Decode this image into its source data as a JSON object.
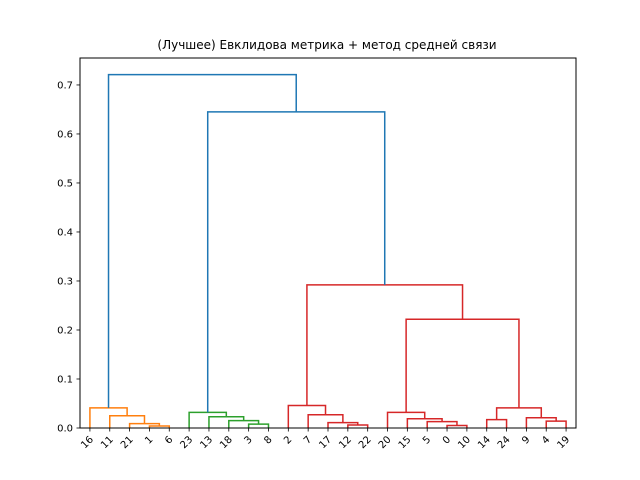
{
  "chart_data": {
    "type": "dendrogram",
    "title": "(Лучшее) Евклидова метрика + метод средней связи",
    "xlabel": "",
    "ylabel": "",
    "ylim": [
      0,
      0.755
    ],
    "yticks": [
      0.0,
      0.1,
      0.2,
      0.3,
      0.4,
      0.5,
      0.6,
      0.7
    ],
    "ytick_labels": [
      "0.0",
      "0.1",
      "0.2",
      "0.3",
      "0.4",
      "0.5",
      "0.6",
      "0.7"
    ],
    "leaves": [
      "16",
      "11",
      "21",
      "1",
      "6",
      "23",
      "13",
      "18",
      "3",
      "8",
      "2",
      "7",
      "17",
      "12",
      "22",
      "20",
      "15",
      "5",
      "0",
      "10",
      "14",
      "24",
      "9",
      "4",
      "19"
    ],
    "cluster_colors": {
      "C1": "#ff7f0e",
      "C2": "#2ca02c",
      "C3": "#d62728",
      "above": "#1f77b4"
    },
    "merges": [
      {
        "left": "1",
        "right": "6",
        "height": 0.004,
        "color": "C1"
      },
      {
        "left": "21",
        "right": "m0",
        "height": 0.009,
        "color": "C1"
      },
      {
        "left": "11",
        "right": "m1",
        "height": 0.025,
        "color": "C1"
      },
      {
        "left": "16",
        "right": "m2",
        "height": 0.041,
        "color": "C1"
      },
      {
        "left": "3",
        "right": "8",
        "height": 0.008,
        "color": "C2"
      },
      {
        "left": "18",
        "right": "m4",
        "height": 0.015,
        "color": "C2"
      },
      {
        "left": "13",
        "right": "m5",
        "height": 0.023,
        "color": "C2"
      },
      {
        "left": "23",
        "right": "m6",
        "height": 0.032,
        "color": "C2"
      },
      {
        "left": "12",
        "right": "22",
        "height": 0.006,
        "color": "C3"
      },
      {
        "left": "17",
        "right": "m8",
        "height": 0.011,
        "color": "C3"
      },
      {
        "left": "7",
        "right": "m9",
        "height": 0.027,
        "color": "C3"
      },
      {
        "left": "2",
        "right": "m10",
        "height": 0.046,
        "color": "C3"
      },
      {
        "left": "0",
        "right": "10",
        "height": 0.005,
        "color": "C3"
      },
      {
        "left": "5",
        "right": "m12",
        "height": 0.013,
        "color": "C3"
      },
      {
        "left": "15",
        "right": "m13",
        "height": 0.019,
        "color": "C3"
      },
      {
        "left": "20",
        "right": "m14",
        "height": 0.032,
        "color": "C3"
      },
      {
        "left": "4",
        "right": "19",
        "height": 0.014,
        "color": "C3"
      },
      {
        "left": "9",
        "right": "m16",
        "height": 0.021,
        "color": "C3"
      },
      {
        "left": "14",
        "right": "24",
        "height": 0.017,
        "color": "C3"
      },
      {
        "left": "m18",
        "right": "m17",
        "height": 0.041,
        "color": "C3"
      },
      {
        "left": "m15",
        "right": "m19",
        "height": 0.222,
        "color": "C3"
      },
      {
        "left": "m11",
        "right": "m20",
        "height": 0.292,
        "color": "C3"
      },
      {
        "left": "m7",
        "right": "m21",
        "height": 0.645,
        "color": "above"
      },
      {
        "left": "m3",
        "right": "m22",
        "height": 0.721,
        "color": "above"
      }
    ]
  }
}
